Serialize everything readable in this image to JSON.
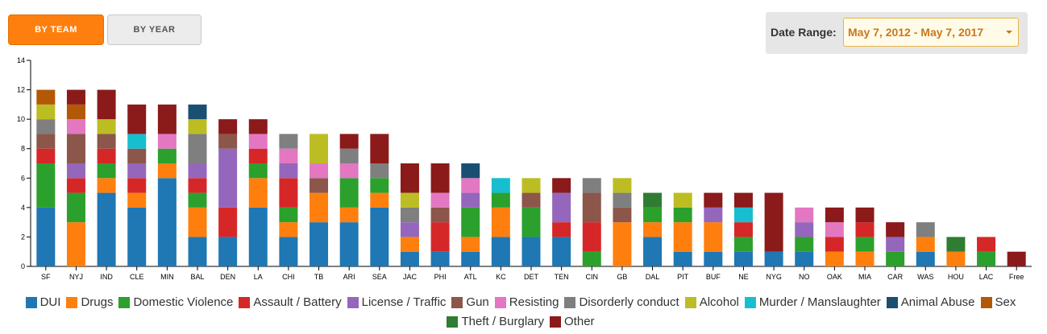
{
  "controls": {
    "by_team_label": "BY TEAM",
    "by_year_label": "BY YEAR",
    "date_range_label": "Date Range:",
    "date_range_value": "May 7, 2012 - May 7, 2017"
  },
  "chart_data": {
    "type": "bar",
    "stacked": true,
    "ylim": [
      0,
      14
    ],
    "yticks": [
      0,
      2,
      4,
      6,
      8,
      10,
      12,
      14
    ],
    "categories": [
      "SF",
      "NYJ",
      "IND",
      "CLE",
      "MIN",
      "BAL",
      "DEN",
      "LA",
      "CHI",
      "TB",
      "ARI",
      "SEA",
      "JAC",
      "PHI",
      "ATL",
      "KC",
      "DET",
      "TEN",
      "CIN",
      "GB",
      "DAL",
      "PIT",
      "BUF",
      "NE",
      "NYG",
      "NO",
      "OAK",
      "MIA",
      "CAR",
      "WAS",
      "HOU",
      "LAC",
      "Free"
    ],
    "series": [
      {
        "name": "DUI",
        "color": "#1f77b4",
        "values": [
          4,
          0,
          5,
          4,
          6,
          2,
          2,
          4,
          2,
          3,
          3,
          4,
          1,
          1,
          1,
          2,
          2,
          2,
          0,
          0,
          2,
          1,
          1,
          1,
          1,
          1,
          0,
          0,
          0,
          1,
          0,
          0,
          0
        ]
      },
      {
        "name": "Drugs",
        "color": "#ff7f0e",
        "values": [
          0,
          3,
          1,
          1,
          1,
          2,
          0,
          2,
          1,
          2,
          1,
          1,
          1,
          0,
          1,
          2,
          0,
          0,
          0,
          3,
          1,
          2,
          2,
          0,
          0,
          0,
          1,
          1,
          0,
          1,
          1,
          0,
          0
        ]
      },
      {
        "name": "Domestic Violence",
        "color": "#2ca02c",
        "values": [
          3,
          2,
          1,
          0,
          1,
          1,
          0,
          1,
          1,
          0,
          2,
          1,
          0,
          0,
          2,
          1,
          2,
          0,
          1,
          0,
          1,
          1,
          0,
          1,
          0,
          1,
          0,
          1,
          1,
          0,
          0,
          1,
          0
        ]
      },
      {
        "name": "Assault / Battery",
        "color": "#d62728",
        "values": [
          1,
          1,
          1,
          1,
          0,
          1,
          2,
          1,
          2,
          0,
          0,
          0,
          0,
          2,
          0,
          0,
          0,
          1,
          2,
          0,
          0,
          0,
          0,
          1,
          0,
          0,
          1,
          1,
          0,
          0,
          0,
          1,
          0
        ]
      },
      {
        "name": "License / Traffic",
        "color": "#9467bd",
        "values": [
          0,
          1,
          0,
          1,
          0,
          1,
          4,
          0,
          1,
          0,
          0,
          0,
          1,
          0,
          1,
          0,
          0,
          2,
          0,
          0,
          0,
          0,
          1,
          0,
          0,
          1,
          0,
          0,
          1,
          0,
          0,
          0,
          0
        ]
      },
      {
        "name": "Gun",
        "color": "#8c564b",
        "values": [
          1,
          2,
          1,
          1,
          0,
          0,
          1,
          0,
          0,
          1,
          0,
          0,
          0,
          1,
          0,
          0,
          1,
          0,
          2,
          1,
          0,
          0,
          0,
          0,
          0,
          0,
          0,
          0,
          0,
          0,
          0,
          0,
          0
        ]
      },
      {
        "name": "Resisting",
        "color": "#e377c2",
        "values": [
          0,
          1,
          0,
          0,
          1,
          0,
          0,
          1,
          1,
          1,
          1,
          0,
          0,
          1,
          1,
          0,
          0,
          0,
          0,
          0,
          0,
          0,
          0,
          0,
          0,
          1,
          1,
          0,
          0,
          0,
          0,
          0,
          0
        ]
      },
      {
        "name": "Disorderly conduct",
        "color": "#7f7f7f",
        "values": [
          1,
          0,
          0,
          0,
          0,
          2,
          0,
          0,
          1,
          0,
          1,
          1,
          1,
          0,
          0,
          0,
          0,
          0,
          1,
          1,
          0,
          0,
          0,
          0,
          0,
          0,
          0,
          0,
          0,
          1,
          0,
          0,
          0
        ]
      },
      {
        "name": "Alcohol",
        "color": "#bcbd22",
        "values": [
          1,
          0,
          1,
          0,
          0,
          1,
          0,
          0,
          0,
          2,
          0,
          0,
          1,
          0,
          0,
          0,
          1,
          0,
          0,
          1,
          0,
          1,
          0,
          0,
          0,
          0,
          0,
          0,
          0,
          0,
          0,
          0,
          0
        ]
      },
      {
        "name": "Murder / Manslaughter",
        "color": "#17becf",
        "values": [
          0,
          0,
          0,
          1,
          0,
          0,
          0,
          0,
          0,
          0,
          0,
          0,
          0,
          0,
          0,
          1,
          0,
          0,
          0,
          0,
          0,
          0,
          0,
          1,
          0,
          0,
          0,
          0,
          0,
          0,
          0,
          0,
          0
        ]
      },
      {
        "name": "Animal Abuse",
        "color": "#1b4f72",
        "values": [
          0,
          0,
          0,
          0,
          0,
          1,
          0,
          0,
          0,
          0,
          0,
          0,
          0,
          0,
          1,
          0,
          0,
          0,
          0,
          0,
          0,
          0,
          0,
          0,
          0,
          0,
          0,
          0,
          0,
          0,
          0,
          0,
          0
        ]
      },
      {
        "name": "Sex",
        "color": "#b35806",
        "values": [
          1,
          1,
          0,
          0,
          0,
          0,
          0,
          0,
          0,
          0,
          0,
          0,
          0,
          0,
          0,
          0,
          0,
          0,
          0,
          0,
          0,
          0,
          0,
          0,
          0,
          0,
          0,
          0,
          0,
          0,
          0,
          0,
          0
        ]
      },
      {
        "name": "Theft / Burglary",
        "color": "#2e7d32",
        "values": [
          0,
          0,
          0,
          0,
          0,
          0,
          0,
          0,
          0,
          0,
          0,
          0,
          0,
          0,
          0,
          0,
          0,
          0,
          0,
          0,
          1,
          0,
          0,
          0,
          0,
          0,
          0,
          0,
          0,
          0,
          1,
          0,
          0
        ]
      },
      {
        "name": "Other",
        "color": "#8b1a1a",
        "values": [
          0,
          1,
          2,
          2,
          2,
          0,
          1,
          1,
          0,
          0,
          1,
          2,
          2,
          2,
          0,
          0,
          0,
          1,
          0,
          0,
          0,
          0,
          1,
          1,
          4,
          0,
          1,
          1,
          1,
          0,
          0,
          0,
          1
        ]
      }
    ]
  }
}
